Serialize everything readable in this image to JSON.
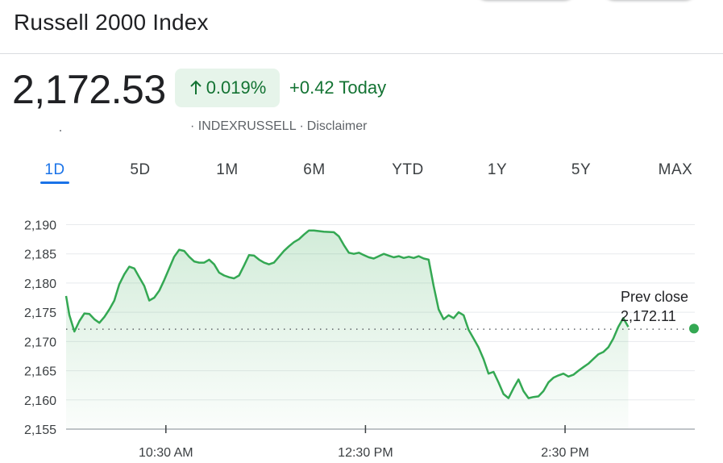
{
  "header": {
    "title": "Russell 2000 Index"
  },
  "quote": {
    "price": "2,172.53",
    "percent_change": "0.019%",
    "change_today": "+0.42 Today",
    "exchange": "· INDEXRUSSELL ·",
    "disclaimer": "Disclaimer"
  },
  "colors": {
    "positive": "#137333",
    "positive_bg": "#e6f4ea",
    "line": "#34a853",
    "active_tab": "#1a73e8"
  },
  "range_tabs": [
    {
      "label": "1D",
      "active": true
    },
    {
      "label": "5D",
      "active": false
    },
    {
      "label": "1M",
      "active": false
    },
    {
      "label": "6M",
      "active": false
    },
    {
      "label": "YTD",
      "active": false
    },
    {
      "label": "1Y",
      "active": false
    },
    {
      "label": "5Y",
      "active": false
    },
    {
      "label": "MAX",
      "active": false
    }
  ],
  "chart_data": {
    "type": "area",
    "title": "",
    "xlabel": "",
    "ylabel": "",
    "ylim": [
      2155,
      2192
    ],
    "xlim": [
      "09:30",
      "15:48"
    ],
    "grid": true,
    "y_ticks": [
      {
        "value": 2190,
        "label": "2,190"
      },
      {
        "value": 2185,
        "label": "2,185"
      },
      {
        "value": 2180,
        "label": "2,180"
      },
      {
        "value": 2175,
        "label": "2,175"
      },
      {
        "value": 2170,
        "label": "2,170"
      },
      {
        "value": 2165,
        "label": "2,165"
      },
      {
        "value": 2160,
        "label": "2,160"
      },
      {
        "value": 2155,
        "label": "2,155"
      }
    ],
    "x_ticks": [
      {
        "time": "10:30",
        "label": "10:30 AM"
      },
      {
        "time": "12:30",
        "label": "12:30 PM"
      },
      {
        "time": "14:30",
        "label": "2:30 PM"
      }
    ],
    "previous_close": {
      "label": "Prev close",
      "value_label": "2,172.11",
      "value": 2172.11
    },
    "series": [
      {
        "points": [
          [
            "09:30",
            2177.8
          ],
          [
            "09:32",
            2174.5
          ],
          [
            "09:35",
            2171.7
          ],
          [
            "09:38",
            2173.5
          ],
          [
            "09:41",
            2174.8
          ],
          [
            "09:44",
            2174.7
          ],
          [
            "09:47",
            2173.8
          ],
          [
            "09:50",
            2173.2
          ],
          [
            "09:53",
            2174.2
          ],
          [
            "09:56",
            2175.5
          ],
          [
            "09:59",
            2177.0
          ],
          [
            "10:02",
            2179.8
          ],
          [
            "10:05",
            2181.5
          ],
          [
            "10:08",
            2182.8
          ],
          [
            "10:11",
            2182.5
          ],
          [
            "10:14",
            2181.0
          ],
          [
            "10:17",
            2179.5
          ],
          [
            "10:20",
            2177.0
          ],
          [
            "10:23",
            2177.5
          ],
          [
            "10:26",
            2178.7
          ],
          [
            "10:29",
            2180.5
          ],
          [
            "10:32",
            2182.5
          ],
          [
            "10:35",
            2184.5
          ],
          [
            "10:38",
            2185.7
          ],
          [
            "10:41",
            2185.5
          ],
          [
            "10:44",
            2184.5
          ],
          [
            "10:47",
            2183.7
          ],
          [
            "10:50",
            2183.5
          ],
          [
            "10:53",
            2183.5
          ],
          [
            "10:56",
            2184.0
          ],
          [
            "10:59",
            2183.2
          ],
          [
            "11:02",
            2181.8
          ],
          [
            "11:05",
            2181.3
          ],
          [
            "11:08",
            2181.0
          ],
          [
            "11:11",
            2180.8
          ],
          [
            "11:14",
            2181.3
          ],
          [
            "11:17",
            2183.0
          ],
          [
            "11:20",
            2184.8
          ],
          [
            "11:23",
            2184.7
          ],
          [
            "11:26",
            2184.0
          ],
          [
            "11:29",
            2183.5
          ],
          [
            "11:32",
            2183.2
          ],
          [
            "11:35",
            2183.5
          ],
          [
            "11:38",
            2184.5
          ],
          [
            "11:41",
            2185.5
          ],
          [
            "11:44",
            2186.3
          ],
          [
            "11:47",
            2187.0
          ],
          [
            "11:50",
            2187.5
          ],
          [
            "11:53",
            2188.3
          ],
          [
            "11:56",
            2189.0
          ],
          [
            "11:59",
            2189.0
          ],
          [
            "12:05",
            2188.8
          ],
          [
            "12:11",
            2188.7
          ],
          [
            "12:14",
            2188.0
          ],
          [
            "12:17",
            2186.5
          ],
          [
            "12:20",
            2185.2
          ],
          [
            "12:23",
            2185.0
          ],
          [
            "12:26",
            2185.2
          ],
          [
            "12:29",
            2184.8
          ],
          [
            "12:32",
            2184.4
          ],
          [
            "12:35",
            2184.2
          ],
          [
            "12:38",
            2184.6
          ],
          [
            "12:41",
            2185.0
          ],
          [
            "12:44",
            2184.7
          ],
          [
            "12:47",
            2184.4
          ],
          [
            "12:50",
            2184.6
          ],
          [
            "12:53",
            2184.3
          ],
          [
            "12:56",
            2184.5
          ],
          [
            "12:59",
            2184.3
          ],
          [
            "13:02",
            2184.6
          ],
          [
            "13:05",
            2184.2
          ],
          [
            "13:08",
            2184.0
          ],
          [
            "13:11",
            2179.5
          ],
          [
            "13:14",
            2175.5
          ],
          [
            "13:17",
            2173.8
          ],
          [
            "13:20",
            2174.5
          ],
          [
            "13:23",
            2174.0
          ],
          [
            "13:26",
            2175.0
          ],
          [
            "13:29",
            2174.5
          ],
          [
            "13:32",
            2172.0
          ],
          [
            "13:35",
            2170.5
          ],
          [
            "13:38",
            2169.0
          ],
          [
            "13:41",
            2167.0
          ],
          [
            "13:44",
            2164.5
          ],
          [
            "13:47",
            2164.8
          ],
          [
            "13:50",
            2163.0
          ],
          [
            "13:53",
            2161.0
          ],
          [
            "13:56",
            2160.3
          ],
          [
            "13:59",
            2162.0
          ],
          [
            "14:02",
            2163.5
          ],
          [
            "14:05",
            2161.5
          ],
          [
            "14:08",
            2160.3
          ],
          [
            "14:11",
            2160.5
          ],
          [
            "14:14",
            2160.6
          ],
          [
            "14:17",
            2161.5
          ],
          [
            "14:20",
            2163.0
          ],
          [
            "14:23",
            2163.8
          ],
          [
            "14:26",
            2164.2
          ],
          [
            "14:29",
            2164.5
          ],
          [
            "14:32",
            2164.0
          ],
          [
            "14:35",
            2164.3
          ],
          [
            "14:38",
            2165.0
          ],
          [
            "14:41",
            2165.6
          ],
          [
            "14:44",
            2166.2
          ],
          [
            "14:47",
            2167.0
          ],
          [
            "14:50",
            2167.8
          ],
          [
            "14:53",
            2168.2
          ],
          [
            "14:56",
            2169.0
          ],
          [
            "14:59",
            2170.5
          ],
          [
            "15:02",
            2172.5
          ],
          [
            "15:05",
            2174.0
          ],
          [
            "15:08",
            2172.5
          ]
        ]
      }
    ]
  }
}
